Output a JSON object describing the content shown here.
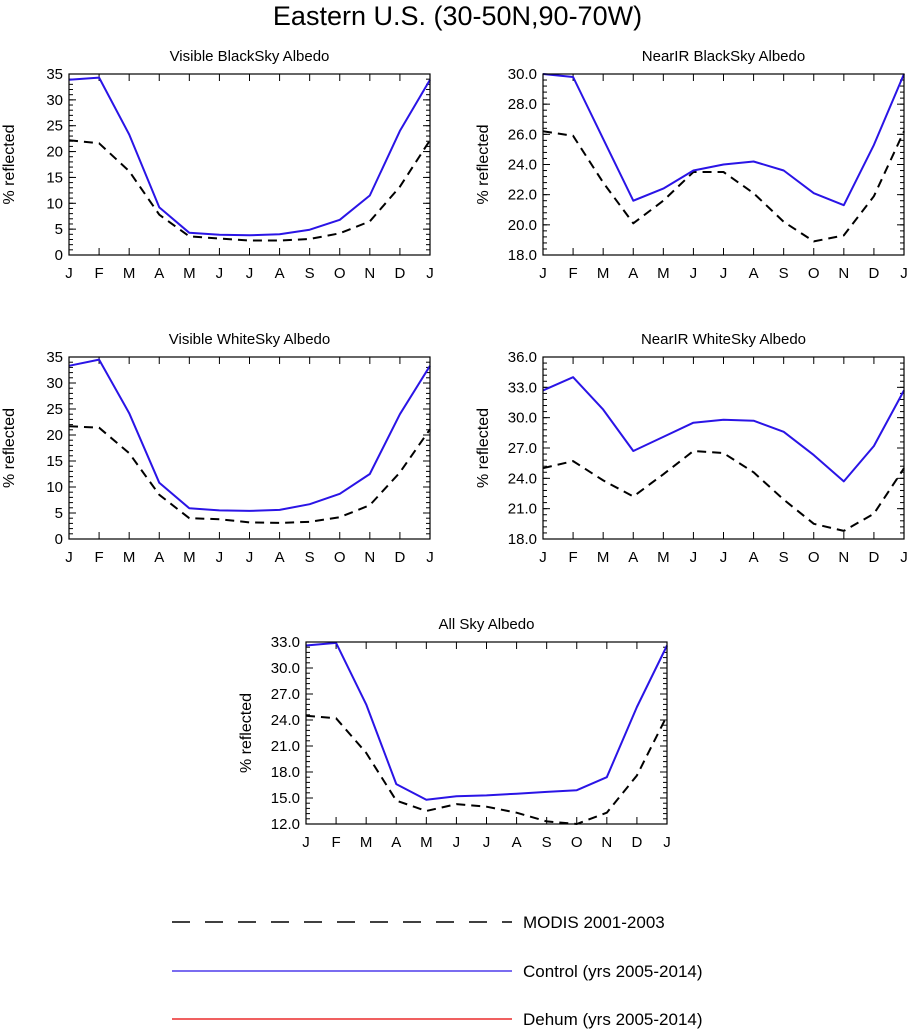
{
  "main_title": "Eastern U.S. (30-50N,90-70W)",
  "colors": {
    "modis": "#000000",
    "control": "#2a14e6",
    "dehum": "#e60000"
  },
  "legend": [
    {
      "label": "MODIS 2001-2003",
      "style": "dashed",
      "color": "#000000"
    },
    {
      "label": "Control (yrs 2005-2014)",
      "style": "solid",
      "color": "#2a14e6"
    },
    {
      "label": "Dehum (yrs 2005-2014)",
      "style": "solid",
      "color": "#e60000"
    }
  ],
  "chart_data": [
    {
      "type": "line",
      "title": "Visible BlackSky Albedo",
      "ylabel": "% reflected",
      "x": [
        "J",
        "F",
        "M",
        "A",
        "M",
        "J",
        "J",
        "A",
        "S",
        "O",
        "N",
        "D",
        "J"
      ],
      "ylim": [
        0,
        35
      ],
      "yticks": [
        0,
        5,
        10,
        15,
        20,
        25,
        30,
        35
      ],
      "ytick_labels": [
        "0",
        "5",
        "10",
        "15",
        "20",
        "25",
        "30",
        "35"
      ],
      "series": [
        {
          "name": "MODIS 2001-2003",
          "values": [
            22.2,
            21.6,
            16.2,
            7.8,
            3.6,
            3.2,
            2.8,
            2.8,
            3.1,
            4.2,
            6.5,
            13.2,
            22.2
          ]
        },
        {
          "name": "Control (yrs 2005-2014)",
          "values": [
            33.9,
            34.3,
            23.3,
            9.2,
            4.3,
            3.9,
            3.8,
            4.0,
            4.9,
            6.8,
            11.5,
            24.0,
            33.9
          ]
        }
      ]
    },
    {
      "type": "line",
      "title": "NearIR BlackSky Albedo",
      "ylabel": "% reflected",
      "x": [
        "J",
        "F",
        "M",
        "A",
        "M",
        "J",
        "J",
        "A",
        "S",
        "O",
        "N",
        "D",
        "J"
      ],
      "ylim": [
        18,
        30
      ],
      "yticks": [
        18,
        20,
        22,
        24,
        26,
        28,
        30
      ],
      "ytick_labels": [
        "18.0",
        "20.0",
        "22.0",
        "24.0",
        "26.0",
        "28.0",
        "30.0"
      ],
      "series": [
        {
          "name": "MODIS 2001-2003",
          "values": [
            26.2,
            25.9,
            22.8,
            20.1,
            21.6,
            23.5,
            23.5,
            22.1,
            20.2,
            18.9,
            19.3,
            21.9,
            26.2
          ]
        },
        {
          "name": "Control (yrs 2005-2014)",
          "values": [
            30.0,
            29.8,
            25.7,
            21.6,
            22.4,
            23.6,
            24.0,
            24.2,
            23.6,
            22.1,
            21.3,
            25.3,
            30.0
          ]
        }
      ]
    },
    {
      "type": "line",
      "title": "Visible WhiteSky Albedo",
      "ylabel": "% reflected",
      "x": [
        "J",
        "F",
        "M",
        "A",
        "M",
        "J",
        "J",
        "A",
        "S",
        "O",
        "N",
        "D",
        "J"
      ],
      "ylim": [
        0,
        35
      ],
      "yticks": [
        0,
        5,
        10,
        15,
        20,
        25,
        30,
        35
      ],
      "ytick_labels": [
        "0",
        "5",
        "10",
        "15",
        "20",
        "25",
        "30",
        "35"
      ],
      "series": [
        {
          "name": "MODIS 2001-2003",
          "values": [
            21.7,
            21.4,
            16.5,
            8.5,
            4.0,
            3.8,
            3.2,
            3.1,
            3.3,
            4.2,
            6.5,
            12.8,
            21.1
          ]
        },
        {
          "name": "Control (yrs 2005-2014)",
          "values": [
            33.3,
            34.5,
            24.2,
            10.8,
            5.9,
            5.5,
            5.4,
            5.6,
            6.7,
            8.7,
            12.5,
            24.0,
            33.3
          ]
        }
      ]
    },
    {
      "type": "line",
      "title": "NearIR WhiteSky Albedo",
      "ylabel": "% reflected",
      "x": [
        "J",
        "F",
        "M",
        "A",
        "M",
        "J",
        "J",
        "A",
        "S",
        "O",
        "N",
        "D",
        "J"
      ],
      "ylim": [
        18,
        36
      ],
      "yticks": [
        18,
        21,
        24,
        27,
        30,
        33,
        36
      ],
      "ytick_labels": [
        "18.0",
        "21.0",
        "24.0",
        "27.0",
        "30.0",
        "33.0",
        "36.0"
      ],
      "series": [
        {
          "name": "MODIS 2001-2003",
          "values": [
            25.0,
            25.7,
            23.8,
            22.2,
            24.4,
            26.7,
            26.5,
            24.6,
            21.9,
            19.5,
            18.8,
            20.5,
            25.0
          ]
        },
        {
          "name": "Control (yrs 2005-2014)",
          "values": [
            32.7,
            34.0,
            30.8,
            26.7,
            28.1,
            29.5,
            29.8,
            29.7,
            28.6,
            26.3,
            23.7,
            27.2,
            32.7
          ]
        }
      ]
    },
    {
      "type": "line",
      "title": "All Sky Albedo",
      "ylabel": "% reflected",
      "x": [
        "J",
        "F",
        "M",
        "A",
        "M",
        "J",
        "J",
        "A",
        "S",
        "O",
        "N",
        "D",
        "J"
      ],
      "ylim": [
        12,
        33
      ],
      "yticks": [
        12,
        15,
        18,
        21,
        24,
        27,
        30,
        33
      ],
      "ytick_labels": [
        "12.0",
        "15.0",
        "18.0",
        "21.0",
        "24.0",
        "27.0",
        "30.0",
        "33.0"
      ],
      "series": [
        {
          "name": "MODIS 2001-2003",
          "values": [
            24.5,
            24.2,
            20.2,
            14.7,
            13.5,
            14.3,
            14.0,
            13.3,
            12.3,
            12.0,
            13.3,
            17.6,
            24.5
          ]
        },
        {
          "name": "Control (yrs 2005-2014)",
          "values": [
            32.6,
            32.9,
            25.8,
            16.6,
            14.8,
            15.2,
            15.3,
            15.5,
            15.7,
            15.9,
            17.4,
            25.5,
            32.6
          ]
        }
      ]
    }
  ]
}
